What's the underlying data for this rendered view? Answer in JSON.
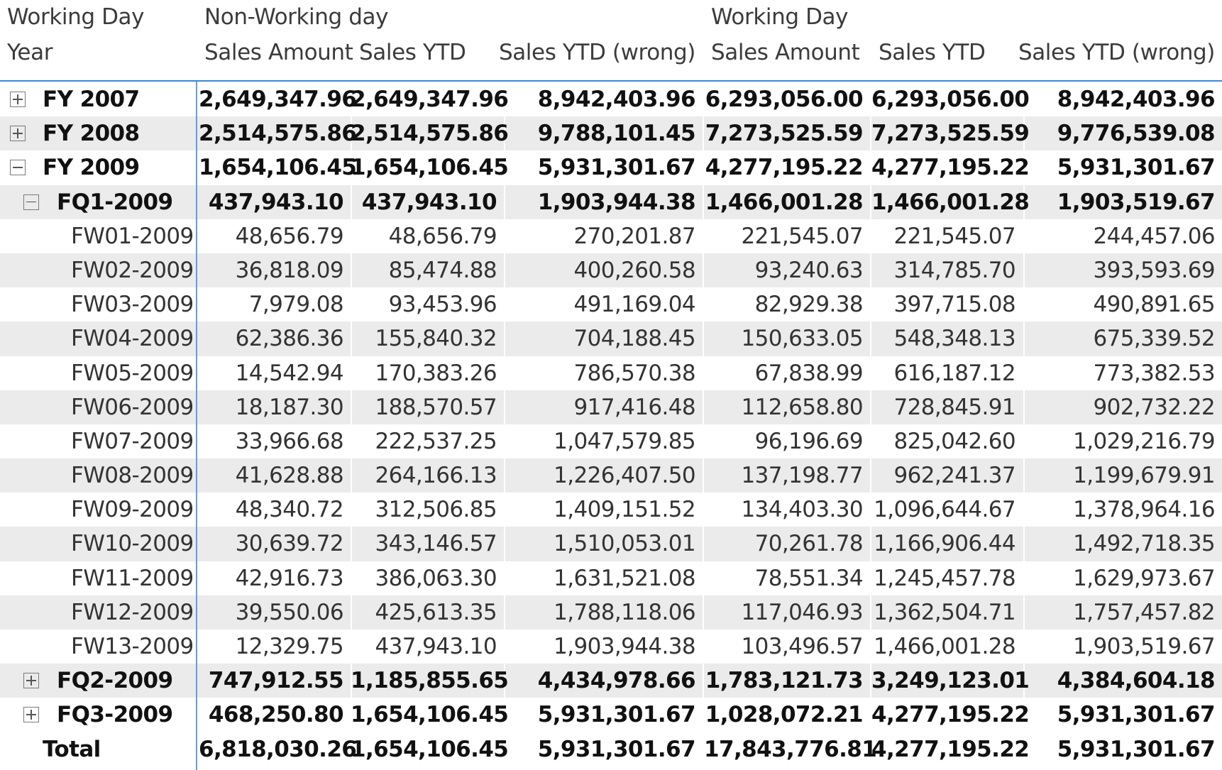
{
  "headers": {
    "row1": {
      "corner": "Working Day",
      "group_nonworking": "Non-Working day",
      "group_working": "Working Day"
    },
    "row2": {
      "corner": "Year",
      "columns": [
        "Sales Amount",
        "Sales YTD",
        "Sales YTD (wrong)",
        "Sales Amount",
        "Sales YTD",
        "Sales YTD (wrong)"
      ]
    }
  },
  "rows": [
    {
      "label": "FY 2007",
      "level": 0,
      "toggle": "plus",
      "bold": true,
      "alt": false,
      "values": [
        "2,649,347.96",
        "2,649,347.96",
        "8,942,403.96",
        "6,293,056.00",
        "6,293,056.00",
        "8,942,403.96"
      ]
    },
    {
      "label": "FY 2008",
      "level": 0,
      "toggle": "plus",
      "bold": true,
      "alt": true,
      "values": [
        "2,514,575.86",
        "2,514,575.86",
        "9,788,101.45",
        "7,273,525.59",
        "7,273,525.59",
        "9,776,539.08"
      ]
    },
    {
      "label": "FY 2009",
      "level": 0,
      "toggle": "minus",
      "bold": true,
      "alt": false,
      "values": [
        "1,654,106.45",
        "1,654,106.45",
        "5,931,301.67",
        "4,277,195.22",
        "4,277,195.22",
        "5,931,301.67"
      ]
    },
    {
      "label": "FQ1-2009",
      "level": 1,
      "toggle": "minus",
      "bold": true,
      "alt": true,
      "values": [
        "437,943.10",
        "437,943.10",
        "1,903,944.38",
        "1,466,001.28",
        "1,466,001.28",
        "1,903,519.67"
      ]
    },
    {
      "label": "FW01-2009",
      "level": 2,
      "toggle": "",
      "bold": false,
      "alt": false,
      "values": [
        "48,656.79",
        "48,656.79",
        "270,201.87",
        "221,545.07",
        "221,545.07",
        "244,457.06"
      ]
    },
    {
      "label": "FW02-2009",
      "level": 2,
      "toggle": "",
      "bold": false,
      "alt": true,
      "values": [
        "36,818.09",
        "85,474.88",
        "400,260.58",
        "93,240.63",
        "314,785.70",
        "393,593.69"
      ]
    },
    {
      "label": "FW03-2009",
      "level": 2,
      "toggle": "",
      "bold": false,
      "alt": false,
      "values": [
        "7,979.08",
        "93,453.96",
        "491,169.04",
        "82,929.38",
        "397,715.08",
        "490,891.65"
      ]
    },
    {
      "label": "FW04-2009",
      "level": 2,
      "toggle": "",
      "bold": false,
      "alt": true,
      "values": [
        "62,386.36",
        "155,840.32",
        "704,188.45",
        "150,633.05",
        "548,348.13",
        "675,339.52"
      ]
    },
    {
      "label": "FW05-2009",
      "level": 2,
      "toggle": "",
      "bold": false,
      "alt": false,
      "values": [
        "14,542.94",
        "170,383.26",
        "786,570.38",
        "67,838.99",
        "616,187.12",
        "773,382.53"
      ]
    },
    {
      "label": "FW06-2009",
      "level": 2,
      "toggle": "",
      "bold": false,
      "alt": true,
      "values": [
        "18,187.30",
        "188,570.57",
        "917,416.48",
        "112,658.80",
        "728,845.91",
        "902,732.22"
      ]
    },
    {
      "label": "FW07-2009",
      "level": 2,
      "toggle": "",
      "bold": false,
      "alt": false,
      "values": [
        "33,966.68",
        "222,537.25",
        "1,047,579.85",
        "96,196.69",
        "825,042.60",
        "1,029,216.79"
      ]
    },
    {
      "label": "FW08-2009",
      "level": 2,
      "toggle": "",
      "bold": false,
      "alt": true,
      "values": [
        "41,628.88",
        "264,166.13",
        "1,226,407.50",
        "137,198.77",
        "962,241.37",
        "1,199,679.91"
      ]
    },
    {
      "label": "FW09-2009",
      "level": 2,
      "toggle": "",
      "bold": false,
      "alt": false,
      "values": [
        "48,340.72",
        "312,506.85",
        "1,409,151.52",
        "134,403.30",
        "1,096,644.67",
        "1,378,964.16"
      ]
    },
    {
      "label": "FW10-2009",
      "level": 2,
      "toggle": "",
      "bold": false,
      "alt": true,
      "values": [
        "30,639.72",
        "343,146.57",
        "1,510,053.01",
        "70,261.78",
        "1,166,906.44",
        "1,492,718.35"
      ]
    },
    {
      "label": "FW11-2009",
      "level": 2,
      "toggle": "",
      "bold": false,
      "alt": false,
      "values": [
        "42,916.73",
        "386,063.30",
        "1,631,521.08",
        "78,551.34",
        "1,245,457.78",
        "1,629,973.67"
      ]
    },
    {
      "label": "FW12-2009",
      "level": 2,
      "toggle": "",
      "bold": false,
      "alt": true,
      "values": [
        "39,550.06",
        "425,613.35",
        "1,788,118.06",
        "117,046.93",
        "1,362,504.71",
        "1,757,457.82"
      ]
    },
    {
      "label": "FW13-2009",
      "level": 2,
      "toggle": "",
      "bold": false,
      "alt": false,
      "values": [
        "12,329.75",
        "437,943.10",
        "1,903,944.38",
        "103,496.57",
        "1,466,001.28",
        "1,903,519.67"
      ]
    },
    {
      "label": "FQ2-2009",
      "level": 1,
      "toggle": "plus",
      "bold": true,
      "alt": true,
      "values": [
        "747,912.55",
        "1,185,855.65",
        "4,434,978.66",
        "1,783,121.73",
        "3,249,123.01",
        "4,384,604.18"
      ]
    },
    {
      "label": "FQ3-2009",
      "level": 1,
      "toggle": "plus",
      "bold": true,
      "alt": false,
      "values": [
        "468,250.80",
        "1,654,106.45",
        "5,931,301.67",
        "1,028,072.21",
        "4,277,195.22",
        "5,931,301.67"
      ]
    },
    {
      "label": "Total",
      "level": 0,
      "toggle": "",
      "bold": true,
      "alt": false,
      "values": [
        "6,818,030.26",
        "1,654,106.45",
        "5,931,301.67",
        "17,843,776.81",
        "4,277,195.22",
        "5,931,301.67"
      ]
    }
  ],
  "colors": {
    "header_underline": "#3a86d6",
    "row_band": "#ebebeb"
  }
}
